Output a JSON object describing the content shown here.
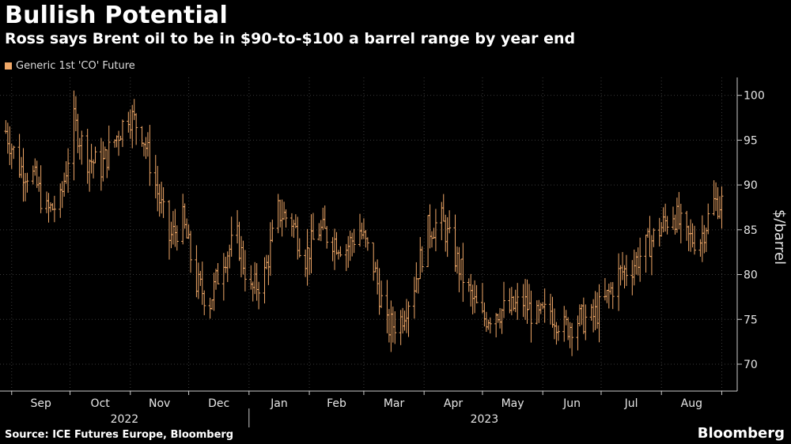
{
  "title": "Bullish Potential",
  "subtitle": "Ross says Brent oil to be in $90-to-$100 a barrel range by year end",
  "legend_label": "Generic 1st 'CO' Future",
  "source": "Source: ICE Futures Europe, Bloomberg",
  "brand": "Bloomberg",
  "colors": {
    "series": "#f0a868",
    "grid": "#3a3a3a",
    "axis": "#cccccc"
  },
  "chart_data": {
    "type": "line",
    "style": "daily OHLC bars",
    "title": "Bullish Potential",
    "subtitle": "Ross says Brent oil to be in $90-to-$100 a barrel range by year end",
    "ylabel": "$/barrel",
    "ylim": [
      67,
      102
    ],
    "yticks": [
      70,
      75,
      80,
      85,
      90,
      95,
      100
    ],
    "xticks": [
      "Sep",
      "Oct",
      "Nov",
      "Dec",
      "Jan",
      "Feb",
      "Mar",
      "Apr",
      "May",
      "Jun",
      "Jul",
      "Aug"
    ],
    "year_labels": [
      "2022",
      "2023"
    ],
    "grid": true,
    "legend_position": "top-left",
    "series": [
      {
        "name": "Generic 1st 'CO' Future",
        "x": [
          "2022-08-29",
          "2022-09-05",
          "2022-09-12",
          "2022-09-19",
          "2022-09-26",
          "2022-10-03",
          "2022-10-10",
          "2022-10-17",
          "2022-10-24",
          "2022-10-31",
          "2022-11-07",
          "2022-11-14",
          "2022-11-21",
          "2022-11-28",
          "2022-12-05",
          "2022-12-12",
          "2022-12-19",
          "2022-12-26",
          "2023-01-02",
          "2023-01-09",
          "2023-01-16",
          "2023-01-23",
          "2023-01-30",
          "2023-02-06",
          "2023-02-13",
          "2023-02-20",
          "2023-02-27",
          "2023-03-06",
          "2023-03-13",
          "2023-03-20",
          "2023-03-27",
          "2023-04-03",
          "2023-04-10",
          "2023-04-17",
          "2023-04-24",
          "2023-05-01",
          "2023-05-08",
          "2023-05-15",
          "2023-05-22",
          "2023-05-29",
          "2023-06-05",
          "2023-06-12",
          "2023-06-19",
          "2023-06-26",
          "2023-07-03",
          "2023-07-10",
          "2023-07-17",
          "2023-07-24",
          "2023-07-31",
          "2023-08-07",
          "2023-08-14",
          "2023-08-21",
          "2023-08-28"
        ],
        "values": [
          96,
          92,
          91,
          87,
          88,
          97,
          93,
          92,
          95,
          98,
          96,
          90,
          84,
          86,
          79,
          77,
          82,
          84,
          78,
          80,
          87,
          86,
          82,
          85,
          84,
          83,
          85,
          81,
          74,
          75,
          79,
          85,
          86,
          82,
          78,
          75,
          76,
          76,
          77,
          75,
          76,
          74,
          75,
          75,
          77,
          80,
          81,
          83,
          85,
          87,
          84,
          84,
          88
        ]
      }
    ]
  }
}
